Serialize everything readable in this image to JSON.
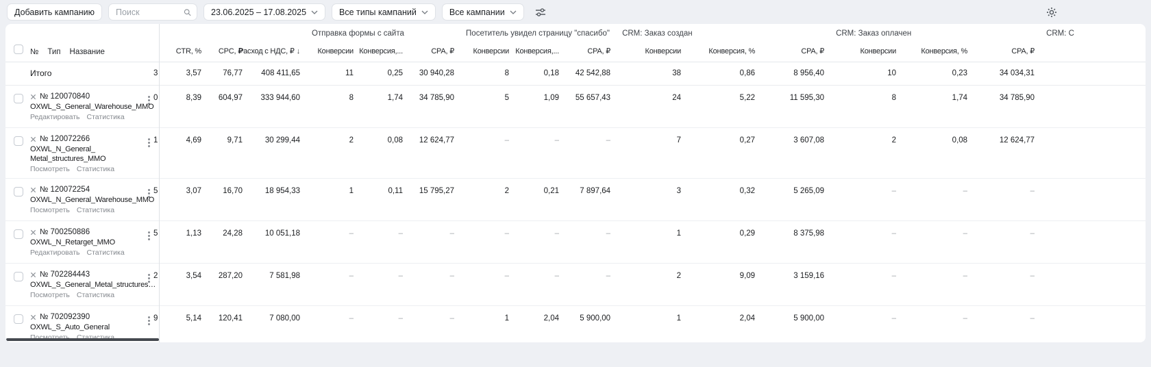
{
  "toolbar": {
    "add_campaign_label": "Добавить кампанию",
    "search_placeholder": "Поиск",
    "date_range": "23.06.2025 – 17.08.2025",
    "campaign_type_filter": "Все типы кампаний",
    "campaign_filter": "Все кампании"
  },
  "table": {
    "group_headers": [
      "Отправка формы с сайта",
      "Посетитель увидел страницу \"спасибо\"",
      "CRM: Заказ создан",
      "CRM: Заказ оплачен",
      "CRM: С"
    ],
    "left_headers": {
      "num": "№",
      "type": "Тип",
      "name": "Название"
    },
    "metric_headers": [
      "CTR, %",
      "CPC, ₽",
      "Расход с НДС, ₽",
      "Конверсии",
      "Конверсия,...",
      "CPA, ₽",
      "Конверсии",
      "Конверсия,...",
      "CPA, ₽",
      "Конверсии",
      "Конверсия, %",
      "CPA, ₽",
      "Конверсии",
      "Конверсия, %",
      "CPA, ₽"
    ],
    "sorted_column_index": 2,
    "sort_arrow": "↓",
    "totals": {
      "label": "Итого",
      "partial": "3",
      "values": [
        "3,57",
        "76,77",
        "408 411,65",
        "11",
        "0,25",
        "30 940,28",
        "8",
        "0,18",
        "42 542,88",
        "38",
        "0,86",
        "8 956,40",
        "10",
        "0,23",
        "34 034,31"
      ]
    },
    "rows": [
      {
        "id": "№ 120070840",
        "name_lines": [
          "OXWL_S_General_Warehouse_MMO"
        ],
        "links": [
          "Редактировать",
          "Статистика"
        ],
        "partial": "0",
        "values": [
          "8,39",
          "604,97",
          "333 944,60",
          "8",
          "1,74",
          "34 785,90",
          "5",
          "1,09",
          "55 657,43",
          "24",
          "5,22",
          "11 595,30",
          "8",
          "1,74",
          "34 785,90"
        ]
      },
      {
        "id": "№ 120072266",
        "name_lines": [
          "OXWL_N_General_",
          "Metal_structures_MMO"
        ],
        "links": [
          "Посмотреть",
          "Статистика"
        ],
        "partial": "1",
        "values": [
          "4,69",
          "9,71",
          "30 299,44",
          "2",
          "0,08",
          "12 624,77",
          "–",
          "–",
          "–",
          "7",
          "0,27",
          "3 607,08",
          "2",
          "0,08",
          "12 624,77"
        ]
      },
      {
        "id": "№ 120072254",
        "name_lines": [
          "OXWL_N_General_Warehouse_MMO"
        ],
        "links": [
          "Посмотреть",
          "Статистика"
        ],
        "partial": "5",
        "values": [
          "3,07",
          "16,70",
          "18 954,33",
          "1",
          "0,11",
          "15 795,27",
          "2",
          "0,21",
          "7 897,64",
          "3",
          "0,32",
          "5 265,09",
          "–",
          "–",
          "–"
        ]
      },
      {
        "id": "№ 700250886",
        "name_lines": [
          "OXWL_N_Retarget_MMO"
        ],
        "links": [
          "Редактировать",
          "Статистика"
        ],
        "partial": "5",
        "values": [
          "1,13",
          "24,28",
          "10 051,18",
          "–",
          "–",
          "–",
          "–",
          "–",
          "–",
          "1",
          "0,29",
          "8 375,98",
          "–",
          "–",
          "–"
        ]
      },
      {
        "id": "№ 702284443",
        "name_lines": [
          "OXWL_S_General_Metal_structures_MMO"
        ],
        "links": [
          "Посмотреть",
          "Статистика"
        ],
        "partial": "2",
        "values": [
          "3,54",
          "287,20",
          "7 581,98",
          "–",
          "–",
          "–",
          "–",
          "–",
          "–",
          "2",
          "9,09",
          "3 159,16",
          "–",
          "–",
          "–"
        ]
      },
      {
        "id": "№ 702092390",
        "name_lines": [
          "OXWL_S_Auto_General"
        ],
        "links": [
          "Посмотреть",
          "Статистика"
        ],
        "partial": "9",
        "values": [
          "5,14",
          "120,41",
          "7 080,00",
          "–",
          "–",
          "–",
          "1",
          "2,04",
          "5 900,00",
          "1",
          "2,04",
          "5 900,00",
          "–",
          "–",
          "–"
        ]
      }
    ]
  }
}
